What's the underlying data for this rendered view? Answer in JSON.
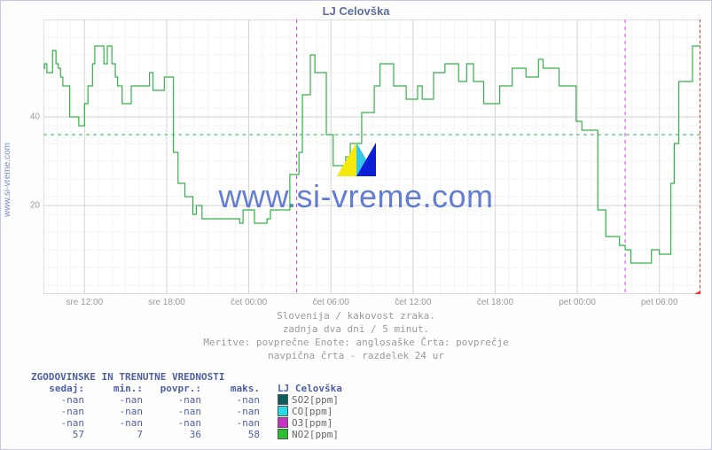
{
  "title": "LJ Celovška",
  "outer_ylabel": "www.si-vreme.com",
  "watermark_text": "www.si-vreme.com",
  "chart": {
    "type": "line-step",
    "ylim": [
      0,
      62
    ],
    "yticks": [
      20,
      40
    ],
    "x_count": 576,
    "x_tick_interval": 72,
    "x_labels": [
      "sre 12:00",
      "sre 18:00",
      "čet 00:00",
      "čet 06:00",
      "čet 12:00",
      "čet 18:00",
      "pet 00:00",
      "pet 06:00"
    ],
    "avg_line_y": 36,
    "day_divisions": [
      222,
      510
    ],
    "now_x": 576,
    "grid_color": "#e9e9e9",
    "axis_color": "#bcbcbc",
    "line_color": "#34b14a",
    "avg_color": "#34b14a",
    "day_div_color": "#c74bd8",
    "now_color": "#ff2a2a",
    "bg_color": "#ffffff",
    "series_no2": [
      51,
      52,
      52,
      50,
      50,
      50,
      50,
      50,
      55,
      55,
      55,
      52,
      52,
      51,
      51,
      49,
      49,
      47,
      47,
      47,
      47,
      47,
      47,
      40,
      40,
      40,
      40,
      40,
      40,
      40,
      40,
      38,
      38,
      38,
      38,
      38,
      43,
      43,
      43,
      47,
      47,
      47,
      47,
      52,
      52,
      56,
      56,
      56,
      56,
      56,
      56,
      56,
      56,
      52,
      52,
      52,
      56,
      56,
      56,
      56,
      52,
      52,
      52,
      49,
      49,
      47,
      47,
      47,
      47,
      43,
      43,
      43,
      43,
      43,
      43,
      43,
      43,
      47,
      47,
      47,
      47,
      47,
      47,
      47,
      47,
      47,
      47,
      47,
      47,
      47,
      47,
      47,
      47,
      50,
      50,
      50,
      46,
      46,
      46,
      46,
      46,
      46,
      46,
      46,
      46,
      46,
      49,
      49,
      49,
      49,
      49,
      49,
      49,
      49,
      32,
      32,
      32,
      32,
      25,
      25,
      25,
      25,
      25,
      25,
      22,
      22,
      22,
      22,
      22,
      22,
      22,
      18,
      18,
      18,
      20,
      20,
      20,
      20,
      20,
      17,
      17,
      17,
      17,
      17,
      17,
      17,
      17,
      17,
      17,
      17,
      17,
      17,
      17,
      17,
      17,
      17,
      17,
      17,
      17,
      17,
      17,
      17,
      17,
      17,
      17,
      17,
      17,
      17,
      17,
      17,
      17,
      17,
      16,
      16,
      16,
      19,
      19,
      19,
      19,
      19,
      19,
      19,
      19,
      19,
      19,
      16,
      16,
      16,
      16,
      16,
      16,
      16,
      16,
      16,
      16,
      16,
      17,
      17,
      17,
      19,
      19,
      19,
      19,
      19,
      19,
      19,
      19,
      19,
      19,
      19,
      19,
      19,
      19,
      19,
      19,
      19,
      27,
      27,
      27,
      27,
      27,
      27,
      27,
      27,
      32,
      32,
      32,
      45,
      45,
      45,
      45,
      45,
      45,
      45,
      54,
      54,
      54,
      54,
      50,
      50,
      50,
      50,
      50,
      50,
      50,
      50,
      50,
      50,
      36,
      36,
      36,
      36,
      36,
      36,
      29,
      29,
      29,
      29,
      29,
      29,
      29,
      29,
      29,
      29,
      29,
      31,
      31,
      31,
      31,
      34,
      34,
      34,
      34,
      34,
      34,
      34,
      34,
      34,
      34,
      41,
      41,
      41,
      41,
      41,
      41,
      41,
      41,
      41,
      41,
      41,
      47,
      47,
      47,
      47,
      47,
      52,
      52,
      52,
      52,
      52,
      52,
      52,
      52,
      52,
      52,
      52,
      52,
      47,
      47,
      47,
      47,
      47,
      47,
      47,
      47,
      47,
      47,
      47,
      44,
      44,
      44,
      44,
      44,
      44,
      44,
      44,
      44,
      44,
      47,
      47,
      47,
      47,
      44,
      44,
      44,
      44,
      44,
      44,
      44,
      44,
      44,
      44,
      50,
      50,
      50,
      50,
      50,
      50,
      50,
      50,
      50,
      50,
      52,
      52,
      52,
      52,
      52,
      52,
      52,
      52,
      52,
      52,
      52,
      52,
      48,
      48,
      48,
      48,
      48,
      48,
      48,
      52,
      52,
      52,
      52,
      52,
      52,
      48,
      48,
      48,
      48,
      48,
      48,
      48,
      48,
      48,
      43,
      43,
      43,
      43,
      43,
      43,
      43,
      43,
      43,
      43,
      43,
      43,
      43,
      43,
      47,
      47,
      47,
      47,
      47,
      47,
      47,
      47,
      47,
      47,
      47,
      51,
      51,
      51,
      51,
      51,
      51,
      51,
      51,
      51,
      51,
      51,
      51,
      49,
      49,
      49,
      49,
      49,
      49,
      49,
      49,
      49,
      49,
      49,
      53,
      53,
      53,
      53,
      51,
      51,
      51,
      51,
      51,
      51,
      51,
      51,
      51,
      51,
      51,
      51,
      51,
      51,
      47,
      47,
      47,
      47,
      47,
      47,
      47,
      47,
      47,
      47,
      47,
      47,
      47,
      47,
      47,
      39,
      39,
      39,
      39,
      39,
      37,
      37,
      37,
      37,
      37,
      37,
      37,
      37,
      37,
      37,
      37,
      37,
      37,
      37,
      19,
      19,
      19,
      19,
      19,
      19,
      19,
      13,
      13,
      13,
      13,
      13,
      13,
      13,
      13,
      13,
      13,
      13,
      13,
      11,
      11,
      11,
      11,
      11,
      10,
      10,
      10,
      10,
      10,
      7,
      7,
      7,
      7,
      7,
      7,
      7,
      7,
      7,
      7,
      7,
      7,
      7,
      7,
      7,
      7,
      7,
      7,
      10,
      10,
      10,
      10,
      10,
      10,
      10,
      9,
      9,
      9,
      9,
      9,
      9,
      9,
      9,
      9,
      9,
      25,
      25,
      25,
      34,
      34,
      34,
      34,
      48,
      48,
      48,
      48,
      48,
      48,
      48,
      48,
      48,
      48,
      48,
      48,
      56,
      56,
      56,
      56,
      56,
      56,
      56,
      56,
      56,
      56,
      56,
      56,
      56,
      56,
      56,
      56,
      56,
      56
    ]
  },
  "footer_lines": [
    "Slovenija / kakovost zraka.",
    "zadnja dva dni / 5 minut.",
    "Meritve: povprečne  Enote: anglosaške  Črta: povprečje",
    "navpična črta - razdelek 24 ur"
  ],
  "stats": {
    "title": "ZGODOVINSKE IN TRENUTNE VREDNOSTI",
    "headers": [
      "sedaj:",
      "min.:",
      "povpr.:",
      "maks."
    ],
    "location_header": "LJ Celovška",
    "rows": [
      {
        "vals": [
          "-nan",
          "-nan",
          "-nan",
          "-nan"
        ],
        "color": "#0f5c5c",
        "label": "SO2[ppm]"
      },
      {
        "vals": [
          "-nan",
          "-nan",
          "-nan",
          "-nan"
        ],
        "color": "#2ad8e6",
        "label": "CO[ppm]"
      },
      {
        "vals": [
          "-nan",
          "-nan",
          "-nan",
          "-nan"
        ],
        "color": "#c334c0",
        "label": "O3[ppm]"
      },
      {
        "vals": [
          "57",
          "7",
          "36",
          "58"
        ],
        "color": "#29bf2f",
        "label": "NO2[ppm]"
      }
    ]
  }
}
